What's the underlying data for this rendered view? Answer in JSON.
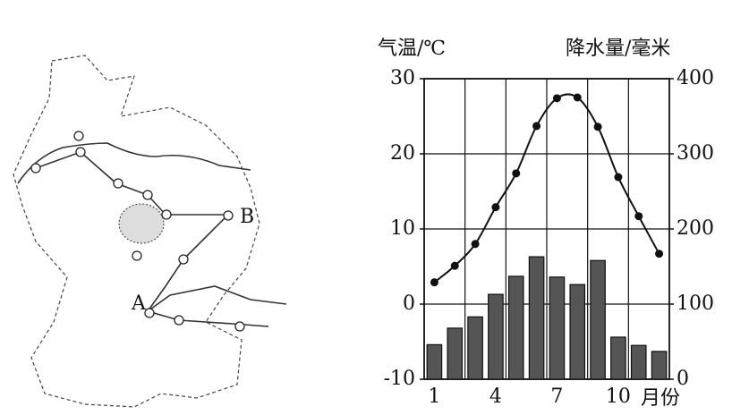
{
  "map": {
    "labels": [
      "A",
      "B"
    ]
  },
  "chart_data": {
    "type": "combo",
    "y_label": "气温/℃",
    "y2_label": "降水量/毫米",
    "x_label": "月份",
    "categories": [
      1,
      null,
      null,
      4,
      null,
      null,
      7,
      null,
      null,
      10,
      null,
      null
    ],
    "series": [
      {
        "type": "bar",
        "axis": "y2",
        "color": "#555555",
        "values": [
          46,
          68,
          83,
          113,
          137,
          163,
          136,
          126,
          158,
          56,
          45,
          37
        ]
      },
      {
        "type": "line",
        "axis": "y",
        "color": "#111111",
        "values": [
          2.9,
          5.1,
          8,
          12.9,
          17.4,
          23.7,
          27.4,
          27.5,
          23.6,
          16.9,
          11.7,
          6.7
        ]
      }
    ],
    "ylim": [
      -10,
      30
    ],
    "yticks": [
      -10,
      0,
      10,
      20,
      30
    ],
    "y2lim": [
      0,
      400
    ],
    "y2ticks": [
      0,
      100,
      200,
      300,
      400
    ],
    "grid": true
  }
}
